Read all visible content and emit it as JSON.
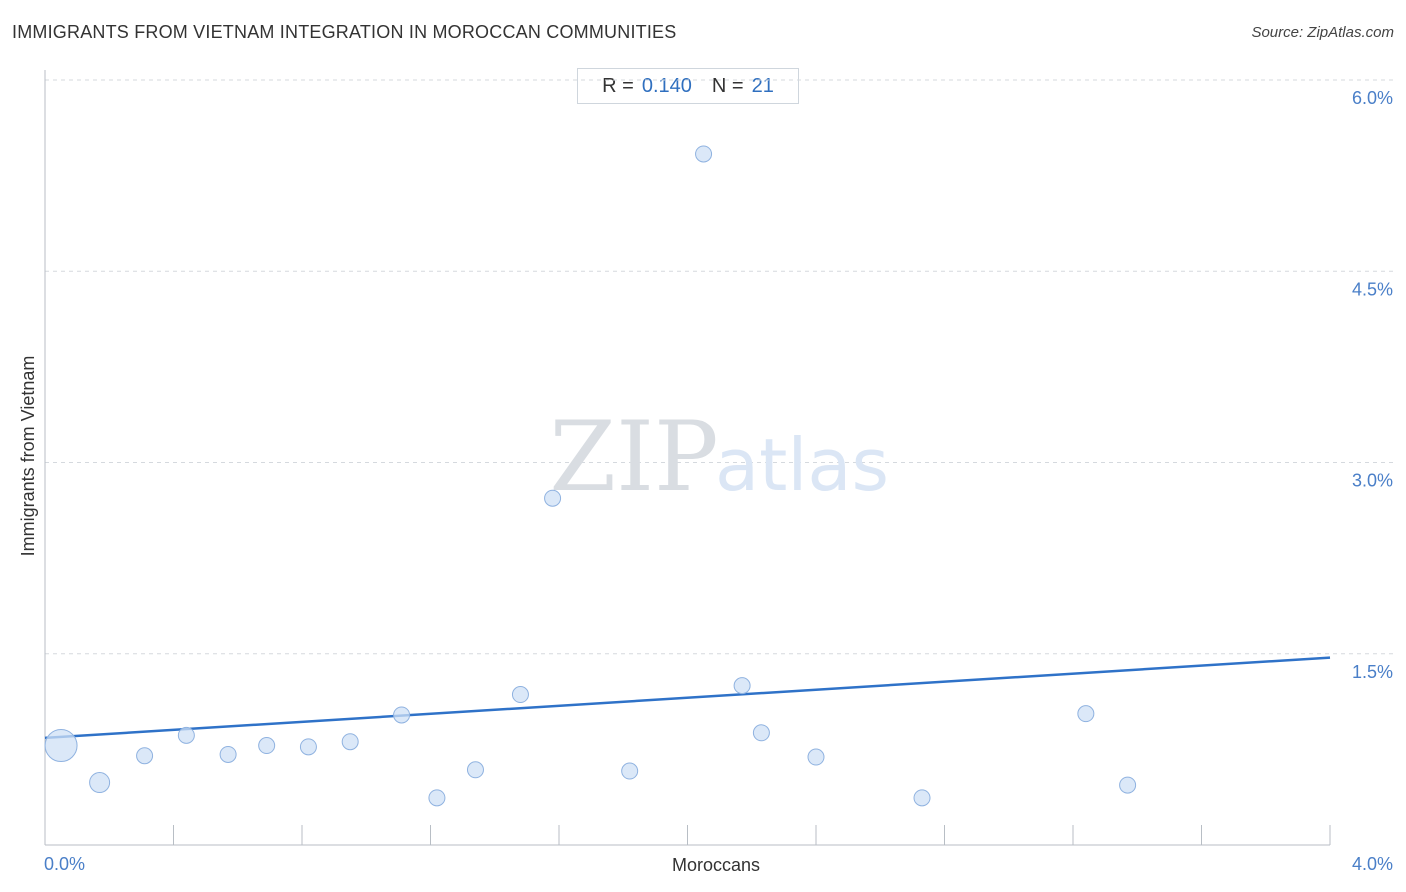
{
  "header": {
    "title": "IMMIGRANTS FROM VIETNAM INTEGRATION IN MOROCCAN COMMUNITIES",
    "source": "Source: ZipAtlas.com"
  },
  "stats": {
    "r_label": "R =",
    "r_value": "0.140",
    "n_label": "N =",
    "n_value": "21"
  },
  "watermark": {
    "zip": "ZIP",
    "atlas": "atlas"
  },
  "colors": {
    "point_fill": "#cfe0f6",
    "point_stroke": "#8fb2e0",
    "trend": "#2f72c8",
    "grid": "#d5d9de",
    "tick_text": "#4a7fc8"
  },
  "chart_data": {
    "type": "scatter",
    "xlabel": "Moroccans",
    "ylabel": "Immigrants from Vietnam",
    "xlim": [
      0,
      4.0
    ],
    "ylim": [
      0,
      6.0
    ],
    "x_tick_labels": [
      {
        "value": 0,
        "label": "0.0%"
      },
      {
        "value": 4.0,
        "label": "4.0%"
      }
    ],
    "y_tick_labels": [
      {
        "value": 1.5,
        "label": "1.5%"
      },
      {
        "value": 3.0,
        "label": "3.0%"
      },
      {
        "value": 4.5,
        "label": "4.5%"
      },
      {
        "value": 6.0,
        "label": "6.0%"
      }
    ],
    "grid_y": [
      1.5,
      3.0,
      4.5,
      6.0
    ],
    "x_minor_ticks": [
      0.4,
      0.8,
      1.2,
      1.6,
      2.0,
      2.4,
      2.8,
      3.2,
      3.6,
      4.0
    ],
    "trendline": {
      "x": [
        0.0,
        4.0
      ],
      "y": [
        0.84,
        1.47
      ]
    },
    "points": [
      {
        "x": 0.05,
        "y": 0.78,
        "size": 3
      },
      {
        "x": 0.17,
        "y": 0.49,
        "size": 2
      },
      {
        "x": 0.31,
        "y": 0.7,
        "size": 1
      },
      {
        "x": 0.44,
        "y": 0.86,
        "size": 1
      },
      {
        "x": 0.57,
        "y": 0.71,
        "size": 1
      },
      {
        "x": 0.69,
        "y": 0.78,
        "size": 1
      },
      {
        "x": 0.82,
        "y": 0.77,
        "size": 1
      },
      {
        "x": 0.95,
        "y": 0.81,
        "size": 1
      },
      {
        "x": 1.11,
        "y": 1.02,
        "size": 1
      },
      {
        "x": 1.22,
        "y": 0.37,
        "size": 1
      },
      {
        "x": 1.34,
        "y": 0.59,
        "size": 1
      },
      {
        "x": 1.48,
        "y": 1.18,
        "size": 1
      },
      {
        "x": 1.58,
        "y": 2.72,
        "size": 1
      },
      {
        "x": 1.82,
        "y": 0.58,
        "size": 1
      },
      {
        "x": 2.05,
        "y": 5.42,
        "size": 1
      },
      {
        "x": 2.17,
        "y": 1.25,
        "size": 1
      },
      {
        "x": 2.23,
        "y": 0.88,
        "size": 1
      },
      {
        "x": 2.4,
        "y": 0.69,
        "size": 1
      },
      {
        "x": 2.73,
        "y": 0.37,
        "size": 1
      },
      {
        "x": 3.24,
        "y": 1.03,
        "size": 1
      },
      {
        "x": 3.37,
        "y": 0.47,
        "size": 1
      }
    ]
  }
}
